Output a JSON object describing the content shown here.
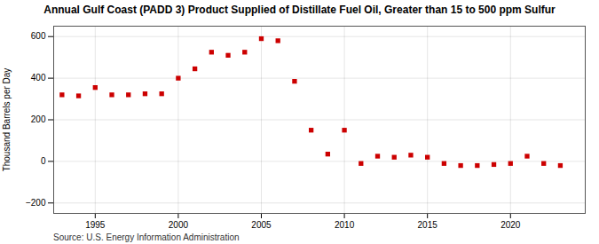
{
  "chart_data": {
    "type": "scatter",
    "title": "Annual Gulf Coast (PADD 3) Product Supplied of Distillate Fuel Oil, Greater than 15 to 500 ppm Sulfur",
    "ylabel": "Thousand Barrels per Day",
    "source": "Source: U.S. Energy Information Administration",
    "x": [
      1993,
      1994,
      1995,
      1996,
      1997,
      1998,
      1999,
      2000,
      2001,
      2002,
      2003,
      2004,
      2005,
      2006,
      2007,
      2008,
      2009,
      2010,
      2011,
      2012,
      2013,
      2014,
      2015,
      2016,
      2017,
      2018,
      2019,
      2020,
      2021,
      2022,
      2023
    ],
    "values": [
      320,
      315,
      355,
      320,
      320,
      325,
      325,
      400,
      445,
      525,
      510,
      525,
      590,
      580,
      385,
      150,
      35,
      150,
      -10,
      25,
      20,
      30,
      20,
      -10,
      -20,
      -20,
      -15,
      -10,
      25,
      -10,
      -20
    ],
    "color": "#cc0000",
    "marker": "square",
    "xlim": [
      1992.5,
      2024.5
    ],
    "xticks": [
      1995,
      2000,
      2005,
      2010,
      2015,
      2020
    ],
    "ylim": [
      -250,
      650
    ],
    "yticks": [
      -200,
      0,
      200,
      400,
      600
    ],
    "grid": true
  }
}
